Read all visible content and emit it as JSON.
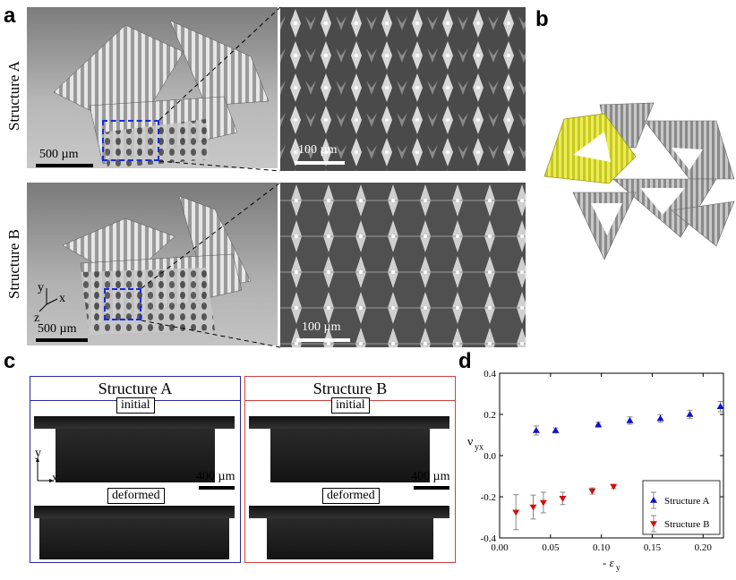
{
  "panels": {
    "a": {
      "letter": "a",
      "structure_a_label": "Structure A",
      "structure_b_label": "Structure B",
      "scale_500_top": "500 µm",
      "scale_100_top": "100 µm",
      "scale_500_bottom": "500 µm",
      "scale_100_bottom": "100 µm",
      "axis_y": "y",
      "axis_x": "x",
      "axis_z": "z"
    },
    "b": {
      "letter": "b"
    },
    "c": {
      "letter": "c",
      "box_a_title": "Structure A",
      "box_b_title": "Structure B",
      "initial_a": "initial",
      "deformed_a": "deformed",
      "initial_b": "initial",
      "deformed_b": "deformed",
      "scale_a": "400 µm",
      "scale_b": "400 µm",
      "axis_y": "y",
      "axis_x": "x"
    },
    "d": {
      "letter": "d"
    }
  },
  "colors": {
    "structure_a": "#1010c8",
    "structure_b": "#d01010",
    "highlight": "#e6e62a",
    "box_a_frame": "#2a2aa0",
    "box_b_frame": "#d04040"
  },
  "chart_data": {
    "type": "scatter",
    "xlabel": "- ε",
    "xlabel_sub": "y",
    "ylabel": "ν",
    "ylabel_sub": "yx",
    "xlim": [
      0,
      0.22
    ],
    "ylim": [
      -0.4,
      0.4
    ],
    "xticks": [
      "0.00",
      "0.05",
      "0.10",
      "0.15",
      "0.20"
    ],
    "yticks": [
      "-0.4",
      "-0.2",
      "0.0",
      "0.2",
      "0.4"
    ],
    "legend_position": "bottom-right",
    "series": [
      {
        "name": "Structure A",
        "marker": "triangle-up",
        "color": "#1010c8",
        "x": [
          0.036,
          0.055,
          0.097,
          0.128,
          0.158,
          0.187,
          0.217
        ],
        "y": [
          0.122,
          0.122,
          0.15,
          0.17,
          0.18,
          0.2,
          0.238
        ],
        "err": [
          0.022,
          0.012,
          0.012,
          0.018,
          0.018,
          0.02,
          0.025
        ]
      },
      {
        "name": "Structure B",
        "marker": "triangle-down",
        "color": "#d01010",
        "x": [
          0.016,
          0.033,
          0.043,
          0.062,
          0.091,
          0.112
        ],
        "y": [
          -0.275,
          -0.25,
          -0.228,
          -0.208,
          -0.172,
          -0.15
        ],
        "err": [
          0.085,
          0.058,
          0.05,
          0.03,
          0.015,
          0.01
        ]
      }
    ]
  }
}
